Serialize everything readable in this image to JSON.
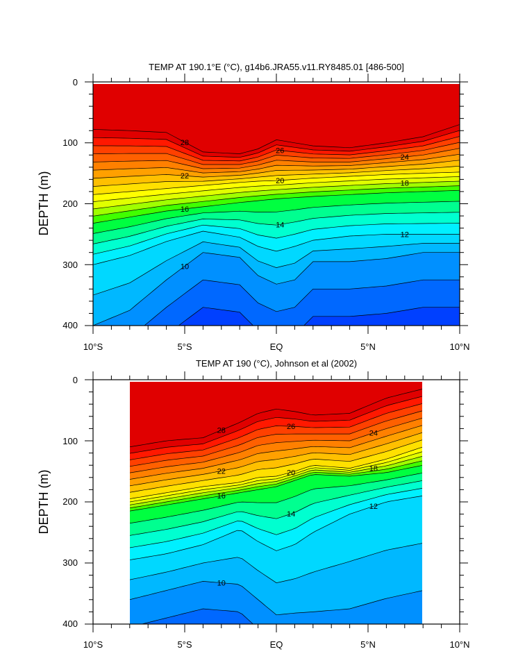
{
  "chart_data": [
    {
      "type": "heatmap",
      "subtype": "filled-contour depth-latitude section",
      "title": "TEMP AT 190.1°E (°C), g14b6.JRA55.v11.RY8485.01 [486-500]",
      "ylabel": "DEPTH (m)",
      "xlabel": "",
      "units": "°C",
      "x_ticks": [
        "10°S",
        "5°S",
        "EQ",
        "5°N",
        "10°N"
      ],
      "x_tick_values": [
        -10,
        -5,
        0,
        5,
        10
      ],
      "y_ticks": [
        "0",
        "100",
        "200",
        "300",
        "400"
      ],
      "y_tick_values": [
        0,
        100,
        200,
        300,
        400
      ],
      "xlim": [
        -10,
        10
      ],
      "ylim": [
        0,
        400
      ],
      "y_reversed": true,
      "data_extent": [
        -10,
        10
      ],
      "contour_interval": 1,
      "contour_labels": [
        28,
        26,
        24,
        22,
        20,
        18,
        16,
        14,
        12,
        10
      ],
      "isotherm_depths": {
        "lat": [
          -10,
          -8,
          -6,
          -4,
          -2,
          -1,
          0,
          1,
          2,
          4,
          6,
          8,
          10
        ],
        "depth_10C": [
          400,
          375,
          325,
          280,
          288,
          318,
          332,
          325,
          295,
          295,
          290,
          280,
          280
        ],
        "depth_12C": [
          300,
          285,
          262,
          245,
          255,
          270,
          278,
          270,
          260,
          253,
          250,
          250,
          250
        ],
        "depth_16C": [
          232,
          222,
          212,
          205,
          198,
          195,
          192,
          190,
          188,
          185,
          182,
          180,
          178
        ],
        "depth_20C": [
          185,
          180,
          175,
          170,
          165,
          163,
          162,
          160,
          158,
          155,
          152,
          150,
          148
        ],
        "depth_28C": [
          78,
          80,
          83,
          115,
          118,
          110,
          95,
          100,
          105,
          108,
          100,
          90,
          70
        ]
      }
    },
    {
      "type": "heatmap",
      "subtype": "filled-contour depth-latitude section",
      "title": "TEMP AT 190 (°C), Johnson et al (2002)",
      "ylabel": "DEPTH (m)",
      "xlabel": "",
      "units": "°C",
      "x_ticks": [
        "10°S",
        "5°S",
        "EQ",
        "5°N",
        "10°N"
      ],
      "x_tick_values": [
        -10,
        -5,
        0,
        5,
        10
      ],
      "y_ticks": [
        "0",
        "100",
        "200",
        "300",
        "400"
      ],
      "y_tick_values": [
        0,
        100,
        200,
        300,
        400
      ],
      "xlim": [
        -10,
        10
      ],
      "ylim": [
        0,
        400
      ],
      "y_reversed": true,
      "data_extent": [
        -8,
        8
      ],
      "contour_interval": 1,
      "contour_labels": [
        28,
        26,
        24,
        22,
        20,
        18,
        16,
        14,
        12,
        10
      ],
      "isotherm_depths": {
        "lat": [
          -8,
          -6,
          -4,
          -2,
          -1,
          0,
          1,
          2,
          4,
          6,
          8
        ],
        "depth_10C": [
          360,
          345,
          330,
          335,
          360,
          385,
          382,
          380,
          375,
          358,
          345
        ],
        "depth_12C": [
          295,
          285,
          270,
          245,
          265,
          280,
          270,
          250,
          220,
          200,
          190
        ],
        "depth_16C": [
          215,
          205,
          195,
          185,
          180,
          175,
          165,
          155,
          158,
          152,
          140
        ],
        "depth_20C": [
          195,
          185,
          175,
          168,
          160,
          158,
          150,
          140,
          145,
          130,
          110
        ],
        "depth_28C": [
          110,
          100,
          95,
          70,
          55,
          48,
          52,
          58,
          55,
          30,
          15
        ]
      }
    }
  ]
}
